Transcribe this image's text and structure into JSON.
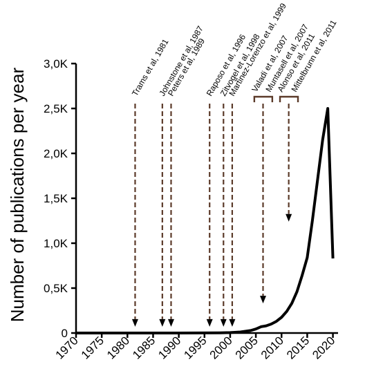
{
  "chart_data": {
    "type": "line",
    "title": "",
    "xlabel": "",
    "ylabel": "Number of publications per year",
    "xlim": [
      1970,
      2021
    ],
    "ylim": [
      0,
      3000
    ],
    "x_ticks": [
      1970,
      1975,
      1980,
      1985,
      1990,
      1995,
      2000,
      2005,
      2010,
      2015,
      2020
    ],
    "y_ticks": [
      {
        "value": 0,
        "label": "0"
      },
      {
        "value": 500,
        "label": "0,5K"
      },
      {
        "value": 1000,
        "label": "1,0K"
      },
      {
        "value": 1500,
        "label": "1,5K"
      },
      {
        "value": 2000,
        "label": "2,0K"
      },
      {
        "value": 2500,
        "label": "2,5K"
      },
      {
        "value": 3000,
        "label": "3,0K"
      }
    ],
    "grid": false,
    "line_color": "#000000",
    "series": [
      {
        "x": [
          1970,
          1980,
          1990,
          1998,
          2000,
          2002,
          2004,
          2005,
          2006,
          2007,
          2008,
          2009,
          2010,
          2011,
          2012,
          2013,
          2014,
          2015,
          2016,
          2017,
          2018,
          2019,
          2020
        ],
        "values": [
          0,
          0,
          0,
          2,
          5,
          12,
          28,
          45,
          70,
          80,
          100,
          130,
          175,
          240,
          330,
          460,
          640,
          840,
          1250,
          1700,
          2150,
          2500,
          830
        ]
      }
    ],
    "annotations": {
      "arrow_color": "#5b3a29",
      "arrows": [
        {
          "year": 1981.5,
          "tip_value": 70,
          "label": "Trams et al, 1981"
        },
        {
          "year": 1986.8,
          "tip_value": 70,
          "label": "Johnstone et al, 1987"
        },
        {
          "year": 1988.5,
          "tip_value": 70,
          "label": "Peters et al, 1989"
        },
        {
          "year": 1996,
          "tip_value": 70,
          "label": "Raposo et al, 1996"
        },
        {
          "year": 1998.7,
          "tip_value": 70,
          "label": "Zitvogel et al, 1998"
        },
        {
          "year": 2000.4,
          "tip_value": 70,
          "label": "Martinez-Lorenzo et al, 1999"
        }
      ],
      "brackets": [
        {
          "from": 2004.7,
          "to": 2008.2,
          "arrow_year": 2006.4,
          "tip_value": 330,
          "labels": [
            "Valadi et al, 2007",
            "Muntasell et al, 2007"
          ]
        },
        {
          "from": 2009.7,
          "to": 2013.2,
          "arrow_year": 2011.4,
          "tip_value": 1240,
          "labels": [
            "Alonso et al, 2011",
            "Mittelbrunn et al, 2011"
          ]
        }
      ]
    }
  }
}
